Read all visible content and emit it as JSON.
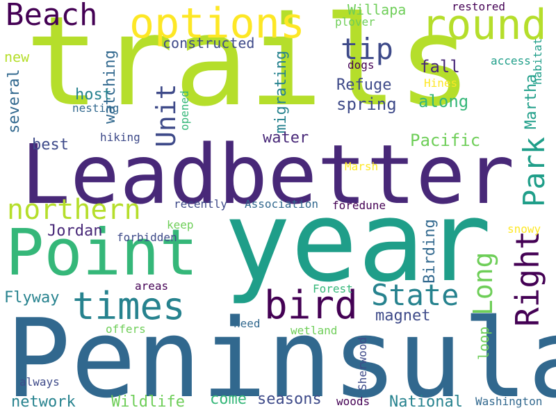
{
  "palette": {
    "dark_purple": "#440154",
    "indigo": "#482878",
    "slate_blue": "#3e4a89",
    "steel_blue": "#31688e",
    "teal": "#26828e",
    "sea_green": "#1f9e89",
    "green": "#35b779",
    "light_green": "#6ece58",
    "lime": "#b5de2b",
    "yellow": "#fde725"
  },
  "words": {
    "trails": "trails",
    "leadbetter": "Leadbetter",
    "year": "year",
    "peninsula": "Peninsula",
    "point": "Point",
    "options": "options",
    "round": "round",
    "beach": "Beach",
    "times": "times",
    "bird": "bird",
    "northern": "northern",
    "park": "Park",
    "right": "Right",
    "state": "State",
    "long": "Long",
    "unit": "Unit",
    "tip": "tip",
    "refuge": "Refuge",
    "spring": "spring",
    "fall": "fall",
    "along": "along",
    "pacific": "Pacific",
    "water": "water",
    "host": "host",
    "best": "best",
    "watching": "watching",
    "constructed": "constructed",
    "migrating": "migrating",
    "several": "several",
    "martha": "Martha",
    "jordan": "Jordan",
    "birding": "Birding",
    "flyway": "Flyway",
    "magnet": "magnet",
    "wildlife": "Wildlife",
    "national": "National",
    "network": "network",
    "seasons": "seasons",
    "come": "come",
    "willapa": "Willapa",
    "restored": "restored",
    "plover": "plover",
    "access": "access",
    "habitat": "habitat",
    "dogs": "dogs",
    "hines": "Hines",
    "nesting": "nesting",
    "opened": "opened",
    "hiking": "hiking",
    "marsh": "Marsh",
    "recently": "recently",
    "association": "Association",
    "foredune": "foredune",
    "snowy": "snowy",
    "keep": "keep",
    "forbidden": "forbidden",
    "areas": "areas",
    "forest": "Forest",
    "need": "need",
    "offers": "offers",
    "wetland": "wetland",
    "loop": "loop",
    "sherwood": "Sherwood",
    "always": "always",
    "woods": "woods",
    "washington": "Washington",
    "new": "new"
  }
}
